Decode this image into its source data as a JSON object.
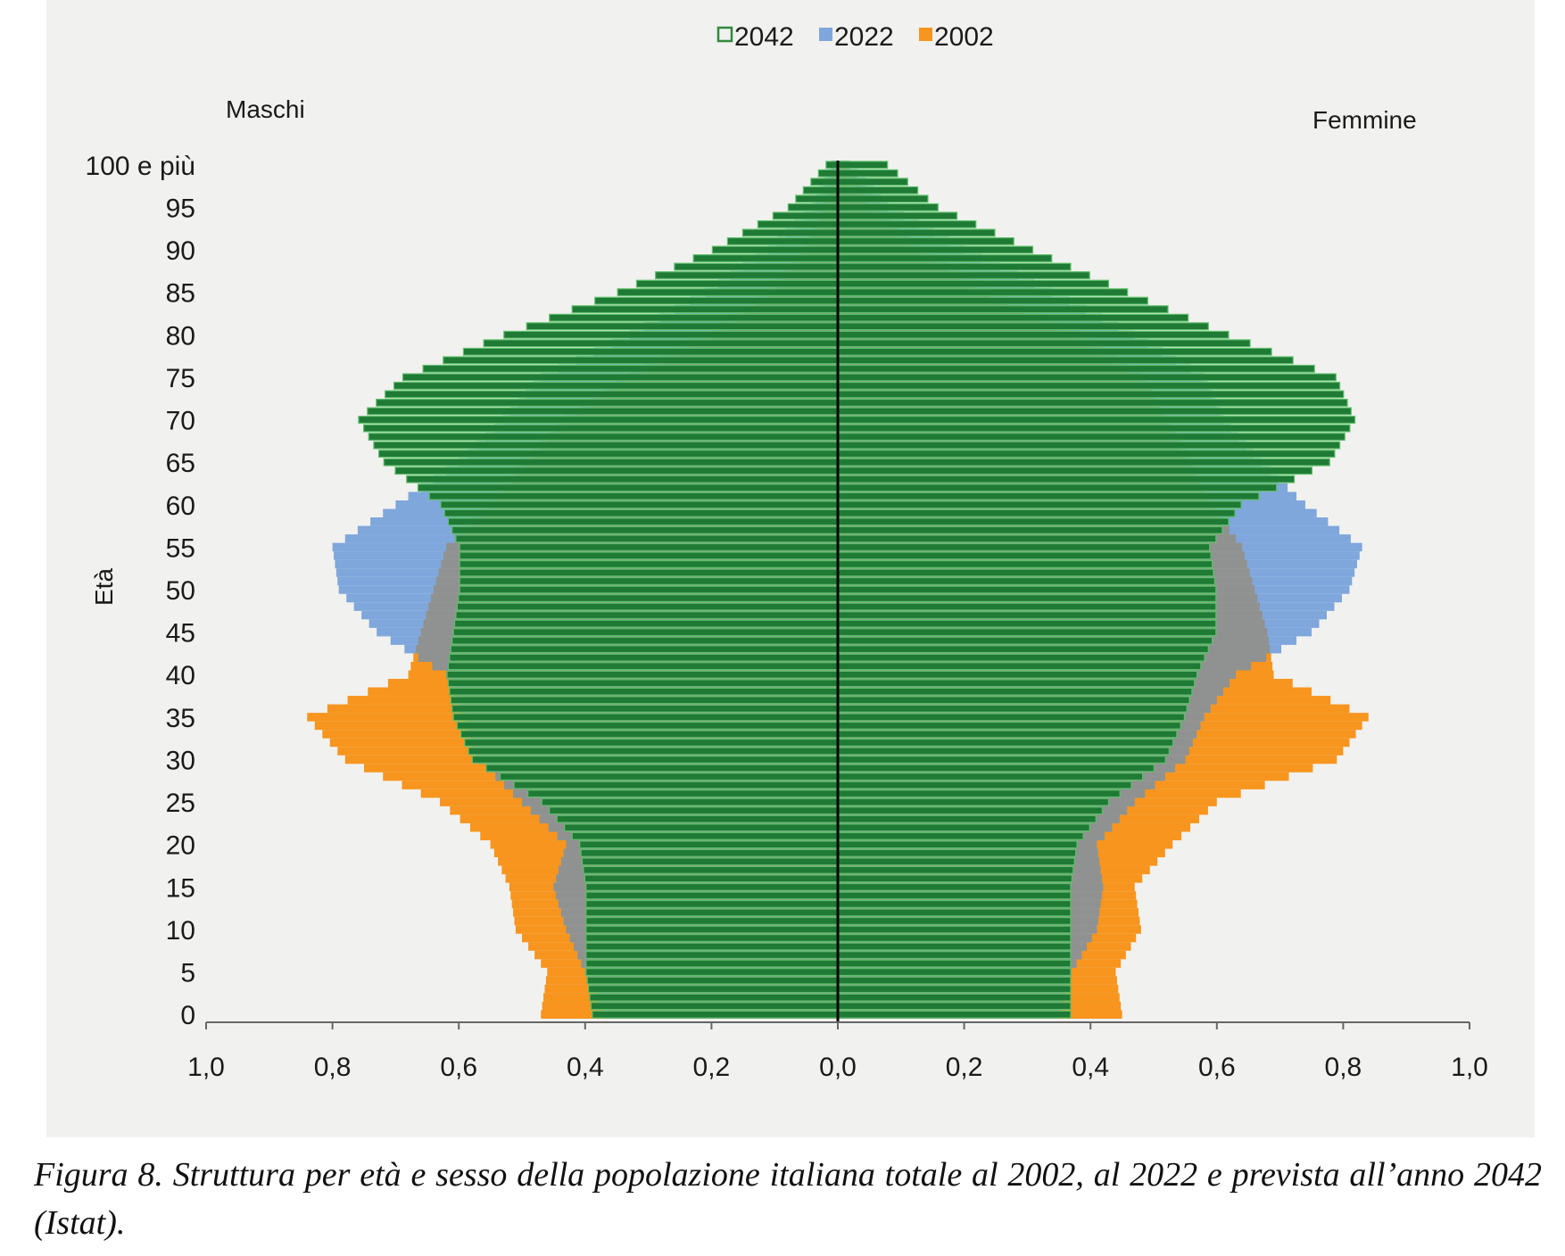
{
  "legend": {
    "items": [
      {
        "label": "2042",
        "marker": "outline",
        "color": "#2f8a3c"
      },
      {
        "label": "2022",
        "marker": "fill",
        "color": "#7fa7db"
      },
      {
        "label": "2002",
        "marker": "fill",
        "color": "#f7951e"
      }
    ]
  },
  "labels": {
    "left_side": "Maschi",
    "right_side": "Femmine",
    "y_axis": "Età"
  },
  "caption": "Figura 8. Struttura per età e sesso della popolazione italiana totale al 2002, al 2022 e prevista all’anno 2042 (Istat).",
  "colors": {
    "y2002": "#f7951e",
    "y2022": "#7fa7db",
    "y2042_fill": "#1e7a35",
    "y2042_outline": "#5fbf6a",
    "overlap_grey": "#8f9290",
    "center_line": "#000000",
    "panel_bg": "#f1f1ef"
  },
  "chart_data": {
    "type": "population-pyramid",
    "unit": "percent of total population per single year of age",
    "x_ticks": [
      "1,0",
      "0,8",
      "0,6",
      "0,4",
      "0,2",
      "0,0",
      "0,2",
      "0,4",
      "0,6",
      "0,8",
      "1,0"
    ],
    "x_range": [
      0,
      1.0
    ],
    "y_ticks": [
      "0",
      "5",
      "10",
      "15",
      "20",
      "25",
      "30",
      "35",
      "40",
      "45",
      "50",
      "55",
      "60",
      "65",
      "70",
      "75",
      "80",
      "85",
      "90",
      "95",
      "100 e più"
    ],
    "age_range": [
      0,
      100
    ],
    "series": [
      {
        "name": "2002",
        "male": {
          "ages": [
            0,
            5,
            10,
            15,
            20,
            25,
            30,
            35,
            40,
            45,
            50,
            55,
            60,
            65,
            70,
            75,
            80,
            85,
            90,
            95,
            100
          ],
          "values": [
            0.47,
            0.46,
            0.51,
            0.52,
            0.55,
            0.63,
            0.78,
            0.84,
            0.68,
            0.66,
            0.64,
            0.62,
            0.55,
            0.5,
            0.43,
            0.33,
            0.2,
            0.11,
            0.05,
            0.02,
            0.005
          ]
        },
        "female": {
          "ages": [
            0,
            5,
            10,
            15,
            20,
            25,
            30,
            35,
            40,
            45,
            50,
            55,
            60,
            65,
            70,
            75,
            80,
            85,
            90,
            95,
            100
          ],
          "values": [
            0.45,
            0.44,
            0.48,
            0.47,
            0.53,
            0.6,
            0.79,
            0.84,
            0.69,
            0.68,
            0.66,
            0.64,
            0.59,
            0.56,
            0.52,
            0.48,
            0.38,
            0.24,
            0.13,
            0.05,
            0.015
          ]
        }
      },
      {
        "name": "2022",
        "male": {
          "ages": [
            0,
            5,
            10,
            15,
            20,
            25,
            30,
            35,
            40,
            45,
            50,
            55,
            60,
            65,
            70,
            75,
            80,
            85,
            90,
            95,
            100
          ],
          "values": [
            0.37,
            0.4,
            0.43,
            0.45,
            0.43,
            0.5,
            0.57,
            0.59,
            0.62,
            0.73,
            0.79,
            0.8,
            0.7,
            0.6,
            0.53,
            0.47,
            0.33,
            0.21,
            0.11,
            0.04,
            0.01
          ]
        },
        "female": {
          "ages": [
            0,
            5,
            10,
            15,
            20,
            25,
            30,
            35,
            40,
            45,
            50,
            55,
            60,
            65,
            70,
            75,
            80,
            85,
            90,
            95,
            100
          ],
          "values": [
            0.35,
            0.37,
            0.41,
            0.42,
            0.41,
            0.47,
            0.55,
            0.58,
            0.63,
            0.75,
            0.81,
            0.83,
            0.74,
            0.67,
            0.61,
            0.58,
            0.47,
            0.34,
            0.2,
            0.08,
            0.02
          ]
        }
      },
      {
        "name": "2042",
        "male": {
          "ages": [
            0,
            5,
            10,
            15,
            20,
            25,
            30,
            35,
            40,
            45,
            50,
            55,
            60,
            65,
            70,
            75,
            80,
            85,
            90,
            95,
            100
          ],
          "values": [
            0.39,
            0.4,
            0.4,
            0.4,
            0.41,
            0.47,
            0.58,
            0.61,
            0.62,
            0.61,
            0.6,
            0.6,
            0.63,
            0.72,
            0.76,
            0.69,
            0.53,
            0.35,
            0.2,
            0.08,
            0.02
          ]
        },
        "female": {
          "ages": [
            0,
            5,
            10,
            15,
            20,
            25,
            30,
            35,
            40,
            45,
            50,
            55,
            60,
            65,
            70,
            75,
            80,
            85,
            90,
            95,
            100
          ],
          "values": [
            0.37,
            0.37,
            0.37,
            0.37,
            0.38,
            0.43,
            0.52,
            0.55,
            0.57,
            0.6,
            0.6,
            0.59,
            0.64,
            0.78,
            0.82,
            0.79,
            0.62,
            0.46,
            0.31,
            0.16,
            0.08
          ]
        }
      }
    ]
  }
}
